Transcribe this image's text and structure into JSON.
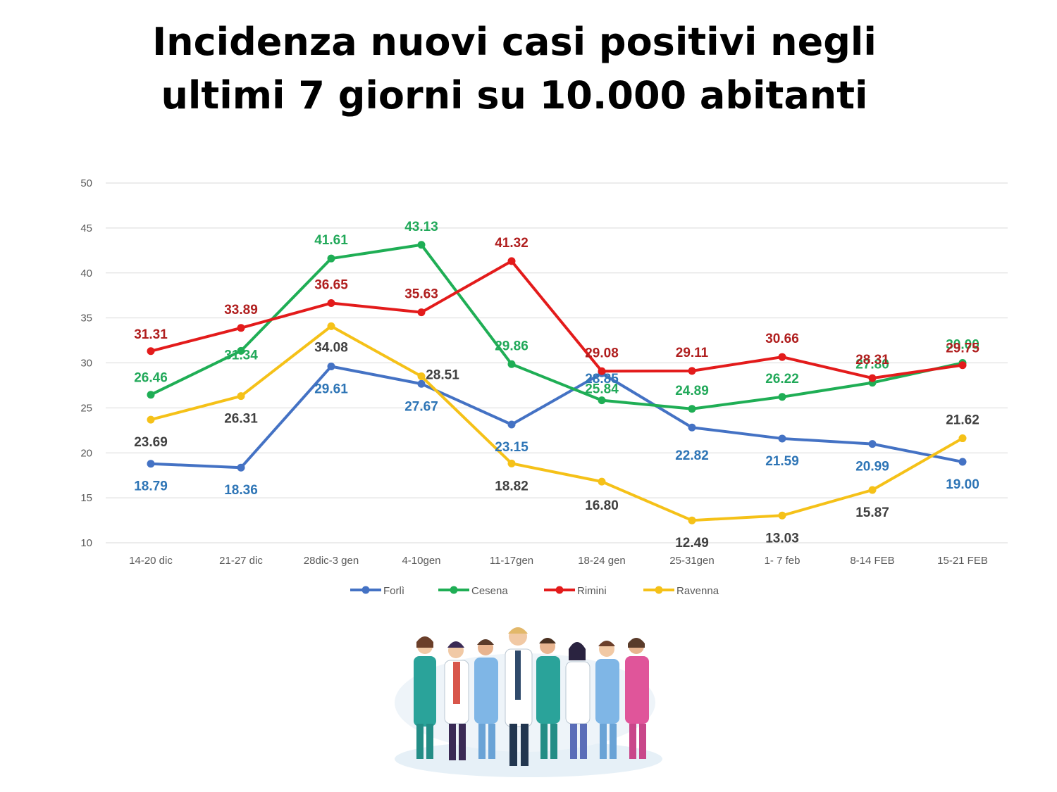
{
  "title": {
    "line1": "Incidenza nuovi casi positivi negli",
    "line2": "ultimi 7 giorni su 10.000 abitanti"
  },
  "chart_data": {
    "type": "line",
    "title": "Incidenza nuovi casi positivi negli ultimi 7 giorni su 10.000 abitanti",
    "xlabel": "",
    "ylabel": "",
    "ylim": [
      10,
      50
    ],
    "yticks": [
      10,
      15,
      20,
      25,
      30,
      35,
      40,
      45,
      50
    ],
    "grid": true,
    "legend_position": "bottom",
    "categories": [
      "14-20 dic",
      "21-27 dic",
      "28dic-3 gen",
      "4-10gen",
      "11-17gen",
      "18-24 gen",
      "25-31gen",
      "1- 7 feb",
      "8-14 FEB",
      "15-21 FEB"
    ],
    "series": [
      {
        "name": "Forlì",
        "color": "#4472C4",
        "label_color": "#2E75B6",
        "values": [
          18.79,
          18.36,
          29.61,
          27.67,
          23.15,
          28.85,
          22.82,
          21.59,
          20.99,
          19.0
        ],
        "labels": [
          "18.79",
          "18.36",
          "29.61",
          "27.67",
          "23.15",
          "28.85",
          "22.82",
          "21.59",
          "20.99",
          "19.00"
        ]
      },
      {
        "name": "Cesena",
        "color": "#1FAE55",
        "label_color": "#22A95A",
        "values": [
          26.46,
          31.34,
          41.61,
          43.13,
          29.86,
          25.84,
          24.89,
          26.22,
          27.8,
          30.0
        ],
        "labels": [
          "26.46",
          "31.34",
          "41.61",
          "43.13",
          "29.86",
          "25.84",
          "24.89",
          "26.22",
          "27.80",
          "30.00"
        ]
      },
      {
        "name": "Rimini",
        "color": "#E31B1B",
        "label_color": "#B01E1E",
        "values": [
          31.31,
          33.89,
          36.65,
          35.63,
          41.32,
          29.08,
          29.11,
          30.66,
          28.31,
          29.75
        ],
        "labels": [
          "31.31",
          "33.89",
          "36.65",
          "35.63",
          "41.32",
          "29.08",
          "29.11",
          "30.66",
          "28.31",
          "29.75"
        ]
      },
      {
        "name": "Ravenna",
        "color": "#F5C118",
        "label_color": "#404040",
        "values": [
          23.69,
          26.31,
          34.08,
          28.51,
          18.82,
          16.8,
          12.49,
          13.03,
          15.87,
          21.62
        ],
        "labels": [
          "23.69",
          "26.31",
          "34.08",
          "28.51",
          "18.82",
          "16.80",
          "12.49",
          "13.03",
          "15.87",
          "21.62"
        ]
      }
    ]
  },
  "illustration": {
    "icon": "medical-staff-group-icon"
  }
}
